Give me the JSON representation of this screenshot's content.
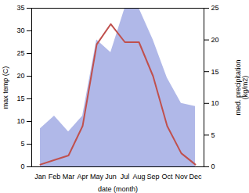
{
  "chart_data": {
    "type": "line",
    "categories": [
      "Jan",
      "Feb",
      "Mar",
      "Apr",
      "May",
      "Jun",
      "Jul",
      "Aug",
      "Sep",
      "Oct",
      "Nov",
      "Dec"
    ],
    "series": [
      {
        "type": "area",
        "axis": "y2",
        "color": "#b0b8e8",
        "values": [
          6.0,
          8.0,
          5.5,
          8.0,
          20.0,
          18.0,
          25.0,
          25.0,
          20.0,
          14.0,
          10.0,
          9.5
        ]
      },
      {
        "type": "line",
        "color": "#c0504d",
        "values": [
          0.5,
          1.5,
          2.5,
          9.0,
          27.0,
          31.5,
          27.5,
          27.5,
          20.0,
          9.0,
          3.0,
          0.5
        ]
      }
    ],
    "xlabel": "date (month)",
    "ylabel": "max temp (C)",
    "y2label": "med. precipitation\n(kg/m2)",
    "ylim": [
      0,
      35
    ],
    "yticks": [
      0,
      5,
      10,
      15,
      20,
      25,
      30,
      35
    ],
    "y2lim": [
      0,
      25
    ],
    "y2ticks": [
      0,
      5,
      10,
      15,
      20,
      25
    ]
  }
}
